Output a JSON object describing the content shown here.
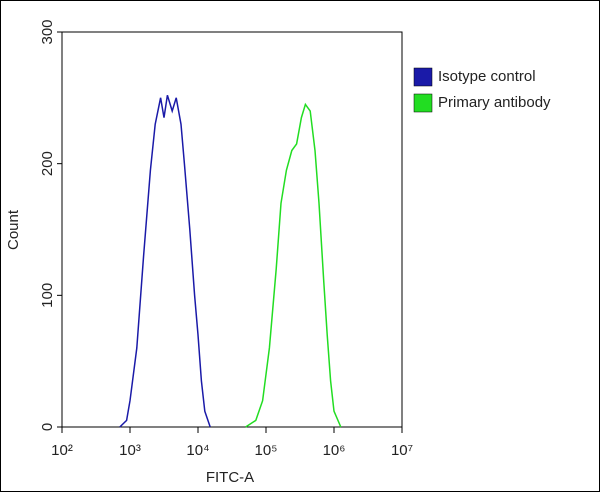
{
  "chart_data": {
    "type": "line",
    "x_label": "FITC-A",
    "y_label": "Count",
    "log_x": true,
    "xlim": [
      100,
      10000000
    ],
    "xticks": [
      {
        "value": 100,
        "label": "10²"
      },
      {
        "value": 1000,
        "label": "10³"
      },
      {
        "value": 10000,
        "label": "10⁴"
      },
      {
        "value": 100000,
        "label": "10⁵"
      },
      {
        "value": 1000000,
        "label": "10⁶"
      },
      {
        "value": 10000000,
        "label": "10⁷"
      }
    ],
    "ylim": [
      0,
      300
    ],
    "yticks": [
      0,
      100,
      200,
      300
    ],
    "legend": "top-right",
    "series": [
      {
        "name": "Isotype control",
        "color": "#1a1aa8",
        "x": [
          708,
          891,
          1000,
          1259,
          1585,
          1995,
          2344,
          2818,
          3162,
          3548,
          4169,
          4786,
          5623,
          6310,
          7586,
          8913,
          10000,
          11220,
          12589,
          15136
        ],
        "values": [
          0,
          5,
          20,
          60,
          130,
          195,
          230,
          250,
          235,
          252,
          240,
          250,
          230,
          200,
          150,
          100,
          70,
          35,
          12,
          0
        ]
      },
      {
        "name": "Primary antibody",
        "color": "#22dd22",
        "x": [
          50119,
          70795,
          89125,
          112202,
          141254,
          165959,
          199526,
          239883,
          281838,
          331131,
          380189,
          446684,
          524807,
          602560,
          707946,
          794328,
          891251,
          1000000,
          1258925
        ],
        "values": [
          0,
          5,
          20,
          60,
          120,
          170,
          195,
          210,
          215,
          235,
          245,
          240,
          210,
          170,
          110,
          70,
          35,
          12,
          0
        ]
      }
    ]
  }
}
